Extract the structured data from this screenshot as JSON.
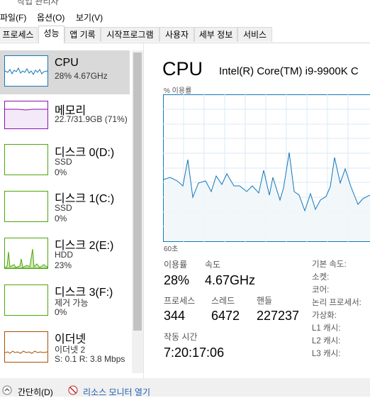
{
  "window": {
    "title": "작업 관리자"
  },
  "menu": [
    "파일(F)",
    "옵션(O)",
    "보기(V)"
  ],
  "tabs": [
    "프로세스",
    "성능",
    "앱 기록",
    "시작프로그램",
    "사용자",
    "세부 정보",
    "서비스"
  ],
  "sidebar": [
    {
      "title": "CPU",
      "lines": [
        "28% 4.67GHz"
      ]
    },
    {
      "title": "메모리",
      "lines": [
        "22.7/31.9GB (71%)"
      ]
    },
    {
      "title": "디스크 0(D:)",
      "lines": [
        "SSD",
        "0%"
      ]
    },
    {
      "title": "디스크 1(C:)",
      "lines": [
        "SSD",
        "0%"
      ]
    },
    {
      "title": "디스크 2(E:)",
      "lines": [
        "HDD",
        "23%"
      ]
    },
    {
      "title": "디스크 3(F:)",
      "lines": [
        "제거 가능",
        "0%"
      ]
    },
    {
      "title": "이더넷",
      "lines": [
        "이더넷 2",
        "S: 0.1 R: 3.8 Mbps"
      ]
    }
  ],
  "main": {
    "title": "CPU",
    "model": "Intel(R) Core(TM) i9-9900K C",
    "graph_label": "% 이용률",
    "graph_time": "60초",
    "stats": [
      {
        "label": "이용률",
        "value": "28%"
      },
      {
        "label": "속도",
        "value": "4.67GHz"
      },
      {
        "label": "프로세스",
        "value": "344"
      },
      {
        "label": "스레드",
        "value": "6472"
      },
      {
        "label": "핸들",
        "value": "227237"
      },
      {
        "label": "작동 시간",
        "value": "7:20:17:06"
      }
    ],
    "specs": [
      "기본 속도:",
      "소켓:",
      "코어:",
      "논리 프로세서:",
      "가상화:",
      "L1 캐시:",
      "L2 캐시:",
      "L3 캐시:"
    ]
  },
  "footer": {
    "fewer": "간단히(D)",
    "monitor": "리소스 모니터 열기"
  }
}
